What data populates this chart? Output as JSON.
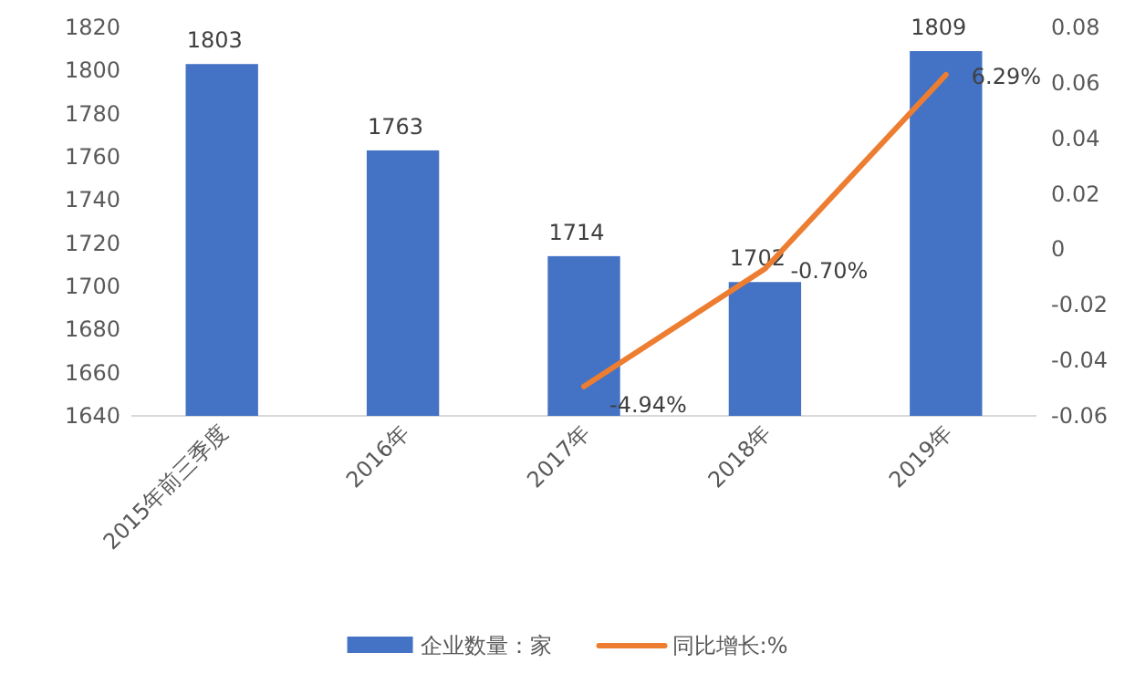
{
  "chart_data": {
    "type": "bar",
    "categories": [
      "2015年前三季度",
      "2016年",
      "2017年",
      "2018年",
      "2019年"
    ],
    "series": [
      {
        "name": "企业数量：家",
        "color": "#4472c4",
        "values": [
          1803,
          1763,
          1714,
          1702,
          1809
        ]
      },
      {
        "name": "同比增长:%",
        "type": "line",
        "axis": "y2",
        "color": "#ed7d31",
        "values": [
          null,
          null,
          -0.0494,
          -0.007,
          0.0629
        ],
        "value_labels": [
          null,
          null,
          "-4.94%",
          "-0.70%",
          "6.29%"
        ]
      }
    ],
    "data_labels": true,
    "ylim": [
      1640,
      1820
    ],
    "yticks": [
      1640,
      1660,
      1680,
      1700,
      1720,
      1740,
      1760,
      1780,
      1800,
      1820
    ],
    "y2lim": [
      -0.06,
      0.08
    ],
    "y2ticks": [
      -0.06,
      -0.04,
      -0.02,
      0,
      0.02,
      0.04,
      0.06,
      0.08
    ],
    "legend": "bottom",
    "grid": false,
    "line_style": "solid"
  }
}
